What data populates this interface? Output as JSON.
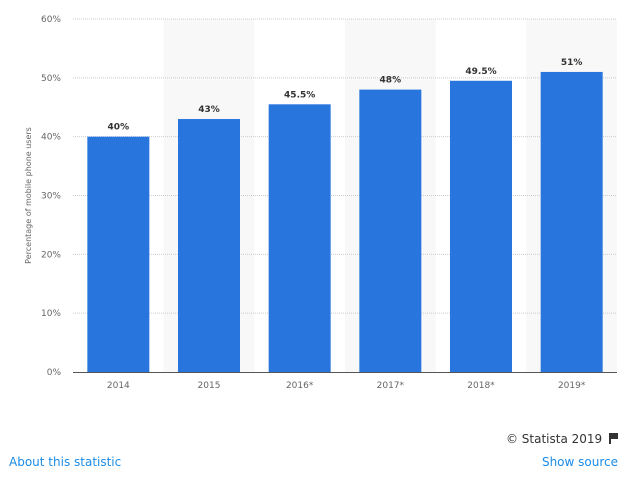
{
  "chart_data": {
    "type": "bar",
    "categories": [
      "2014",
      "2015",
      "2016*",
      "2017*",
      "2018*",
      "2019*"
    ],
    "values": [
      40,
      43,
      45.5,
      48,
      49.5,
      51
    ],
    "data_labels": [
      "40%",
      "43%",
      "45.5%",
      "48%",
      "49.5%",
      "51%"
    ],
    "title": "",
    "xlabel": "",
    "ylabel": "Percentage of mobile phone users",
    "ylim": [
      0,
      60
    ],
    "yticks": [
      "0%",
      "10%",
      "20%",
      "30%",
      "40%",
      "50%",
      "60%"
    ],
    "grid": true,
    "bar_color": "#2876dd",
    "alt_column_shade": "#f8f8f8"
  },
  "footer": {
    "credit": "© Statista 2019",
    "about_link": "About this statistic",
    "source_link": "Show source"
  },
  "link_color": "#1a8ce8"
}
